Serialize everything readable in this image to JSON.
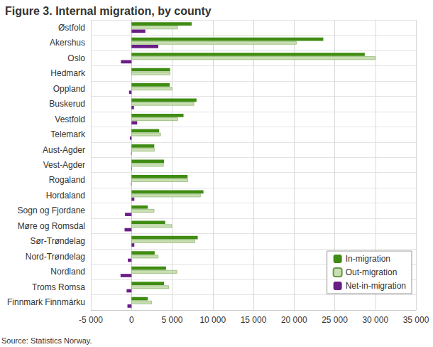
{
  "chart_data": {
    "type": "bar",
    "title": "Figure 3. Internal migration, by county",
    "annotations": [
      "Source: Statistics Norway."
    ],
    "orientation": "horizontal",
    "categories": [
      "Østfold",
      "Akershus",
      "Oslo",
      "Hedmark",
      "Oppland",
      "Buskerud",
      "Vestfold",
      "Telemark",
      "Aust-Agder",
      "Vest-Agder",
      "Rogaland",
      "Hordaland",
      "Sogn og Fjordane",
      "Møre og Romsdal",
      "Sør-Trøndelag",
      "Nord-Trøndelag",
      "Nordland",
      "Troms Romsa",
      "Finnmark Finnmárku"
    ],
    "series": [
      {
        "name": "In-migration",
        "color": "#3f8c12",
        "values": [
          7400,
          23600,
          28700,
          4750,
          4700,
          8000,
          6400,
          3400,
          2800,
          4000,
          6900,
          8850,
          2000,
          4150,
          8150,
          2850,
          4250,
          4000,
          2000
        ]
      },
      {
        "name": "Out-migration",
        "color": "#c9dfb3",
        "values": [
          5700,
          20300,
          30000,
          4750,
          5000,
          7700,
          5700,
          3600,
          2850,
          3950,
          6950,
          8500,
          2800,
          5000,
          7800,
          3300,
          5600,
          4600,
          2500
        ]
      },
      {
        "name": "Net-in-migration",
        "color": "#6b1d86",
        "values": [
          1700,
          3300,
          -1300,
          0,
          -300,
          300,
          700,
          -200,
          -50,
          50,
          -50,
          350,
          -800,
          -850,
          350,
          -450,
          -1350,
          -600,
          -500
        ]
      }
    ],
    "xlim": [
      -5000,
      35000
    ],
    "xticks": [
      {
        "value": -5000,
        "label": "-5 000"
      },
      0,
      {
        "value": 5000,
        "label": "5 000"
      },
      {
        "value": 10000,
        "label": "10 000"
      },
      {
        "value": 15000,
        "label": "15 000"
      },
      {
        "value": 20000,
        "label": "20 000"
      },
      {
        "value": 25000,
        "label": "25 000"
      },
      {
        "value": 30000,
        "label": "30 000"
      },
      {
        "value": 35000,
        "label": "35 000"
      }
    ],
    "grid": true,
    "legend": "lower right"
  }
}
